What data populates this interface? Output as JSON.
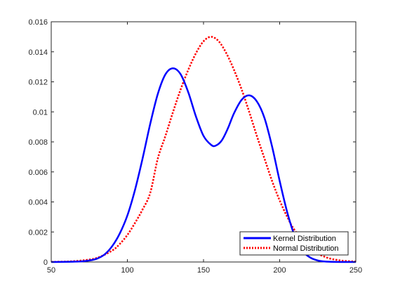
{
  "chart_data": {
    "type": "line",
    "title": "",
    "xlabel": "",
    "ylabel": "",
    "xlim": [
      50,
      250
    ],
    "ylim": [
      0,
      0.016
    ],
    "grid": false,
    "legend_position": "bottom-right",
    "x_ticks": [
      "50",
      "100",
      "150",
      "200",
      "250"
    ],
    "y_ticks": [
      "0",
      "0.002",
      "0.004",
      "0.006",
      "0.008",
      "0.01",
      "0.012",
      "0.014",
      "0.016"
    ],
    "series": [
      {
        "name": "Kernel Distribution",
        "color": "#0000ff",
        "style": "solid",
        "x": [
          50,
          60,
          70,
          75,
          80,
          85,
          90,
          95,
          100,
          105,
          110,
          115,
          120,
          125,
          130,
          135,
          140,
          145,
          150,
          155,
          158,
          162,
          166,
          170,
          175,
          180,
          185,
          190,
          195,
          200,
          205,
          210,
          215,
          220,
          225,
          230,
          240,
          250
        ],
        "y": [
          0,
          1e-05,
          4e-05,
          0.0001,
          0.00022,
          0.0005,
          0.00105,
          0.0019,
          0.0031,
          0.0048,
          0.0069,
          0.0092,
          0.0112,
          0.0125,
          0.0129,
          0.0125,
          0.0113,
          0.0097,
          0.0084,
          0.0078,
          0.00775,
          0.0081,
          0.0089,
          0.0099,
          0.0108,
          0.0111,
          0.0107,
          0.0096,
          0.0077,
          0.0054,
          0.0033,
          0.0017,
          0.00075,
          0.0003,
          0.0001,
          3e-05,
          2e-06,
          0
        ]
      },
      {
        "name": "Normal Distribution",
        "color": "#ff0000",
        "style": "dotted",
        "x": [
          50,
          60,
          70,
          80,
          90,
          95,
          100,
          105,
          110,
          115,
          120,
          125,
          130,
          135,
          140,
          145,
          150,
          155,
          160,
          165,
          170,
          175,
          180,
          185,
          190,
          195,
          200,
          205,
          210,
          220,
          230,
          240,
          250
        ],
        "y": [
          1e-05,
          3e-05,
          0.0001,
          0.00027,
          0.00076,
          0.0012,
          0.0018,
          0.0026,
          0.0035,
          0.0046,
          0.0069,
          0.0084,
          0.01,
          0.0115,
          0.0128,
          0.0139,
          0.0147,
          0.015,
          0.0147,
          0.0139,
          0.0128,
          0.0115,
          0.01,
          0.0084,
          0.0069,
          0.0054,
          0.0041,
          0.003,
          0.0021,
          0.0009,
          0.00033,
          0.0001,
          3e-05
        ]
      }
    ]
  }
}
